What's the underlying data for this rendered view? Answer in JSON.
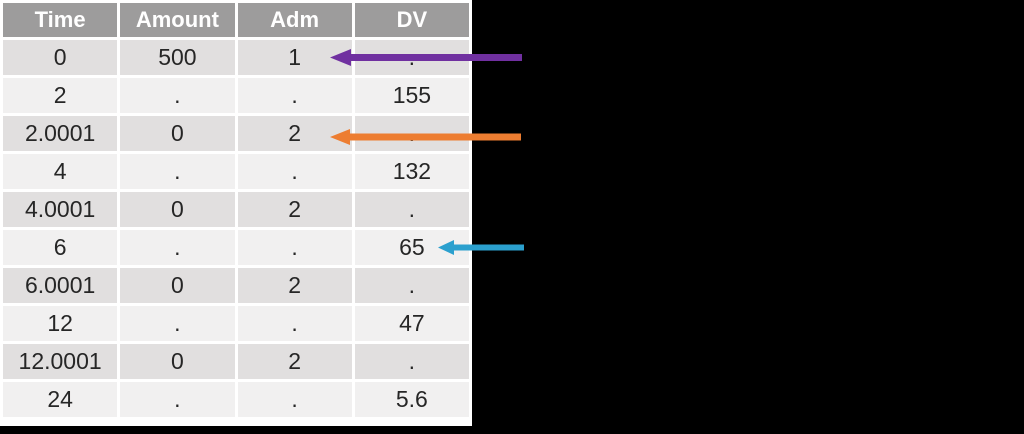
{
  "page": {
    "background_color": "#000000",
    "panel_background": "#FFFFFF"
  },
  "table": {
    "columns": [
      "Time",
      "Amount",
      "Adm",
      "DV"
    ],
    "rows": [
      [
        "0",
        "500",
        "1",
        "."
      ],
      [
        "2",
        ".",
        ".",
        "155"
      ],
      [
        "2.0001",
        "0",
        "2",
        "."
      ],
      [
        "4",
        ".",
        ".",
        "132"
      ],
      [
        "4.0001",
        "0",
        "2",
        "."
      ],
      [
        "6",
        ".",
        ".",
        "65"
      ],
      [
        "6.0001",
        "0",
        "2",
        "."
      ],
      [
        "12",
        ".",
        ".",
        "47"
      ],
      [
        "12.0001",
        "0",
        "2",
        "."
      ],
      [
        "24",
        ".",
        ".",
        "5.6"
      ]
    ],
    "style": {
      "page_bg": "#000000",
      "panel_bg": "#FFFFFF",
      "header_bg": "#9D9C9C",
      "header_text": "#FFFFFF",
      "band_dark": "#E1DFDF",
      "band_light": "#F1F0F0",
      "cell_text": "#262626"
    }
  },
  "annotations": {
    "arrows": [
      {
        "name": "purple-arrow",
        "color": "#7030A0",
        "direction": "left",
        "points_to": "Adm value 1 in row Time=0"
      },
      {
        "name": "orange-arrow",
        "color": "#ED7D31",
        "direction": "left",
        "points_to": "Adm value 2 in row Time=2.0001"
      },
      {
        "name": "cyan-arrow",
        "color": "#2BA0CE",
        "direction": "left",
        "points_to": "DV value 65 in row Time=6"
      }
    ]
  },
  "chart_data": {
    "type": "table",
    "columns": [
      "Time",
      "Amount",
      "Adm",
      "DV"
    ],
    "rows": [
      [
        "0",
        "500",
        "1",
        "."
      ],
      [
        "2",
        ".",
        ".",
        "155"
      ],
      [
        "2.0001",
        "0",
        "2",
        "."
      ],
      [
        "4",
        ".",
        ".",
        "132"
      ],
      [
        "4.0001",
        "0",
        "2",
        "."
      ],
      [
        "6",
        ".",
        ".",
        "65"
      ],
      [
        "6.0001",
        "0",
        "2",
        "."
      ],
      [
        "12",
        ".",
        ".",
        "47"
      ],
      [
        "12.0001",
        "0",
        "2",
        "."
      ],
      [
        "24",
        ".",
        ".",
        "5.6"
      ]
    ],
    "title": "",
    "notes_from_pixels": "Gray-banded data table on white panel over black slide background; purple arrow points at Adm=1 (Time 0), orange arrow at Adm=2 (Time 2.0001), cyan arrow at DV=65 (Time 6)"
  }
}
